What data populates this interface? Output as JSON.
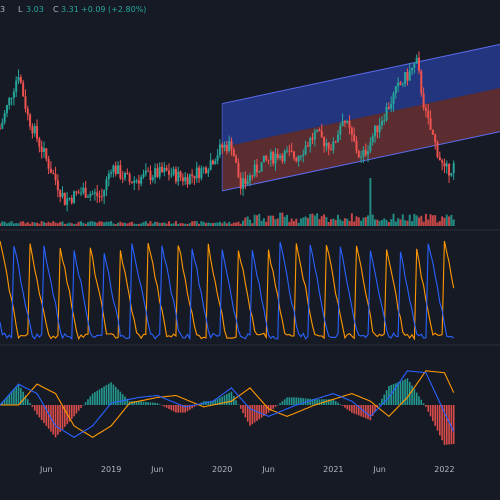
{
  "legend": {
    "low_label": "L",
    "low_value": "3.03",
    "close_label": "C",
    "close_value": "3.31",
    "change": "+0.09 (+2.80%)",
    "open_partial": "3"
  },
  "colors": {
    "background": "#161a25",
    "up": "#26a69a",
    "down": "#ef5350",
    "channel_upper_fill": "#2a3f9e",
    "channel_lower_fill": "#8a3a3a",
    "channel_line": "#5b6cf0",
    "aroon_up": "#ff9800",
    "aroon_down": "#2962ff",
    "macd_line": "#2962ff",
    "signal_line": "#ff9800",
    "pane_divider": "#2a2e39"
  },
  "chart_data": [
    {
      "type": "candlestick",
      "pane": "price",
      "x_axis_ticks": [
        "Jun",
        "2019",
        "Jun",
        "2020",
        "Jun",
        "2021",
        "Jun",
        "2022"
      ],
      "x_range": [
        "2018-01",
        "2022-07"
      ],
      "price_path": [
        [
          "2018-01",
          5.6
        ],
        [
          "2018-03",
          7.4
        ],
        [
          "2018-04",
          6.0
        ],
        [
          "2018-06",
          4.6
        ],
        [
          "2018-08",
          3.3
        ],
        [
          "2018-10",
          3.6
        ],
        [
          "2018-12",
          3.4
        ],
        [
          "2019-01",
          4.4
        ],
        [
          "2019-03",
          3.9
        ],
        [
          "2019-05",
          4.1
        ],
        [
          "2019-07",
          4.2
        ],
        [
          "2019-09",
          4.0
        ],
        [
          "2019-11",
          4.3
        ],
        [
          "2020-01",
          5.0
        ],
        [
          "2020-02",
          5.1
        ],
        [
          "2020-03",
          3.7
        ],
        [
          "2020-05",
          4.4
        ],
        [
          "2020-07",
          4.8
        ],
        [
          "2020-09",
          4.7
        ],
        [
          "2020-11",
          5.4
        ],
        [
          "2021-01",
          5.0
        ],
        [
          "2021-02",
          6.0
        ],
        [
          "2021-04",
          4.6
        ],
        [
          "2021-06",
          5.8
        ],
        [
          "2021-08",
          6.9
        ],
        [
          "2021-10",
          7.7
        ],
        [
          "2021-11",
          6.0
        ],
        [
          "2022-01",
          4.2
        ],
        [
          "2022-02",
          4.4
        ]
      ],
      "volume_spike_date": "2021-05",
      "regression_channel": {
        "start": "2020-01",
        "end": "2022-07",
        "mid_start": 5.0,
        "mid_end": 6.9,
        "band": 1.4
      }
    },
    {
      "type": "line",
      "pane": "aroon",
      "range": [
        0,
        100
      ],
      "series": [
        {
          "key": "up",
          "period_months": 3.2,
          "phase": 0.0
        },
        {
          "key": "down",
          "period_months": 3.2,
          "phase": 0.55
        }
      ]
    },
    {
      "type": "bar",
      "pane": "macd",
      "macd_path": [
        [
          "2018-01",
          0.0
        ],
        [
          "2018-03",
          0.55
        ],
        [
          "2018-05",
          0.3
        ],
        [
          "2018-07",
          -0.55
        ],
        [
          "2018-09",
          -0.85
        ],
        [
          "2018-11",
          -0.55
        ],
        [
          "2019-01",
          0.05
        ],
        [
          "2019-04",
          0.2
        ],
        [
          "2019-06",
          0.25
        ],
        [
          "2019-09",
          -0.05
        ],
        [
          "2019-12",
          0.1
        ],
        [
          "2020-02",
          0.45
        ],
        [
          "2020-04",
          -0.1
        ],
        [
          "2020-06",
          -0.3
        ],
        [
          "2020-09",
          0.0
        ],
        [
          "2020-11",
          0.15
        ],
        [
          "2021-01",
          0.3
        ],
        [
          "2021-03",
          0.1
        ],
        [
          "2021-05",
          -0.3
        ],
        [
          "2021-07",
          0.2
        ],
        [
          "2021-09",
          0.9
        ],
        [
          "2021-11",
          0.85
        ],
        [
          "2022-01",
          -0.2
        ],
        [
          "2022-02",
          -0.7
        ]
      ],
      "signal_lag_months": 2
    }
  ]
}
